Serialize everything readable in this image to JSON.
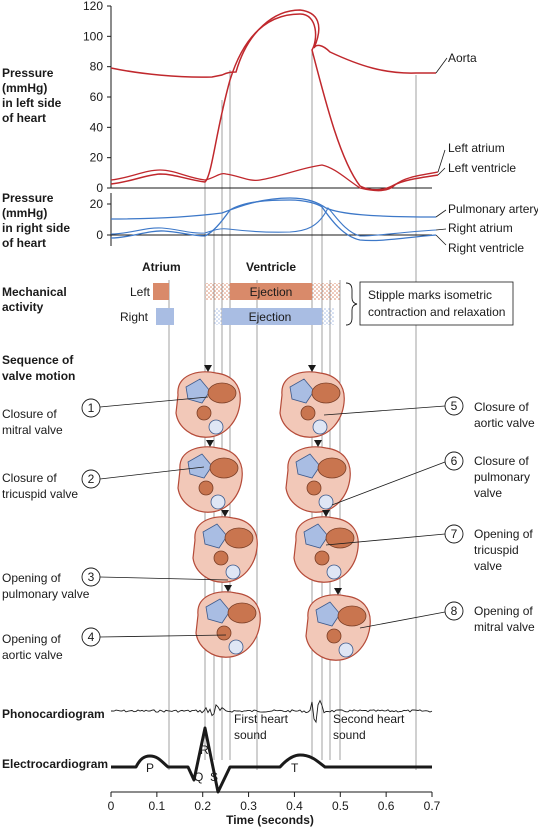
{
  "pressure_left": {
    "label_lines": [
      "Pressure",
      "(mmHg)",
      "in left side",
      "of heart"
    ],
    "y_ticks": [
      "120",
      "100",
      "80",
      "60",
      "40",
      "20",
      "0"
    ],
    "curves": {
      "aorta": "Aorta",
      "left_atrium": "Left atrium",
      "left_ventricle": "Left ventricle"
    }
  },
  "pressure_right": {
    "label_lines": [
      "Pressure",
      "(mmHg)",
      "in right side",
      "of heart"
    ],
    "y_ticks": [
      "20",
      "0"
    ],
    "curves": {
      "pulmonary_artery": "Pulmonary artery",
      "right_atrium": "Right atrium",
      "right_ventricle": "Right ventricle"
    }
  },
  "mechanical": {
    "label_lines": [
      "Mechanical",
      "activity"
    ],
    "atrium": "Atrium",
    "ventricle": "Ventricle",
    "left": "Left",
    "right": "Right",
    "ejection": "Ejection",
    "note_lines": [
      "Stipple marks isometric",
      "contraction and relaxation"
    ],
    "colors": {
      "left": "#d98a6a",
      "right": "#a9bde3"
    }
  },
  "valves": {
    "label_lines": [
      "Sequence of",
      "valve motion"
    ],
    "events": [
      {
        "num": "1",
        "lines": [
          "Closure of",
          "mitral valve"
        ]
      },
      {
        "num": "2",
        "lines": [
          "Closure of",
          "tricuspid valve"
        ]
      },
      {
        "num": "3",
        "lines": [
          "Opening of",
          "pulmonary valve"
        ]
      },
      {
        "num": "4",
        "lines": [
          "Opening of",
          "aortic valve"
        ]
      },
      {
        "num": "5",
        "lines": [
          "Closure of",
          "aortic valve"
        ]
      },
      {
        "num": "6",
        "lines": [
          "Closure of",
          "pulmonary",
          "valve"
        ]
      },
      {
        "num": "7",
        "lines": [
          "Opening of",
          "tricuspid",
          "valve"
        ]
      },
      {
        "num": "8",
        "lines": [
          "Opening of",
          "mitral valve"
        ]
      }
    ]
  },
  "phonocardiogram": {
    "label": "Phonocardiogram",
    "first_lines": [
      "First heart",
      "sound"
    ],
    "second_lines": [
      "Second heart",
      "sound"
    ]
  },
  "ecg": {
    "label": "Electrocardiogram",
    "waves": {
      "p": "P",
      "q": "Q",
      "r": "R",
      "s": "S",
      "t": "T"
    }
  },
  "time_axis": {
    "label": "Time (seconds)",
    "ticks": [
      "0",
      "0.1",
      "0.2",
      "0.3",
      "0.4",
      "0.5",
      "0.6",
      "0.7"
    ]
  },
  "colors": {
    "left_curves": "#c0282d",
    "right_curves": "#3d78c8",
    "heart_fill": "#f2c8b8",
    "heart_outline": "#b54b39"
  }
}
